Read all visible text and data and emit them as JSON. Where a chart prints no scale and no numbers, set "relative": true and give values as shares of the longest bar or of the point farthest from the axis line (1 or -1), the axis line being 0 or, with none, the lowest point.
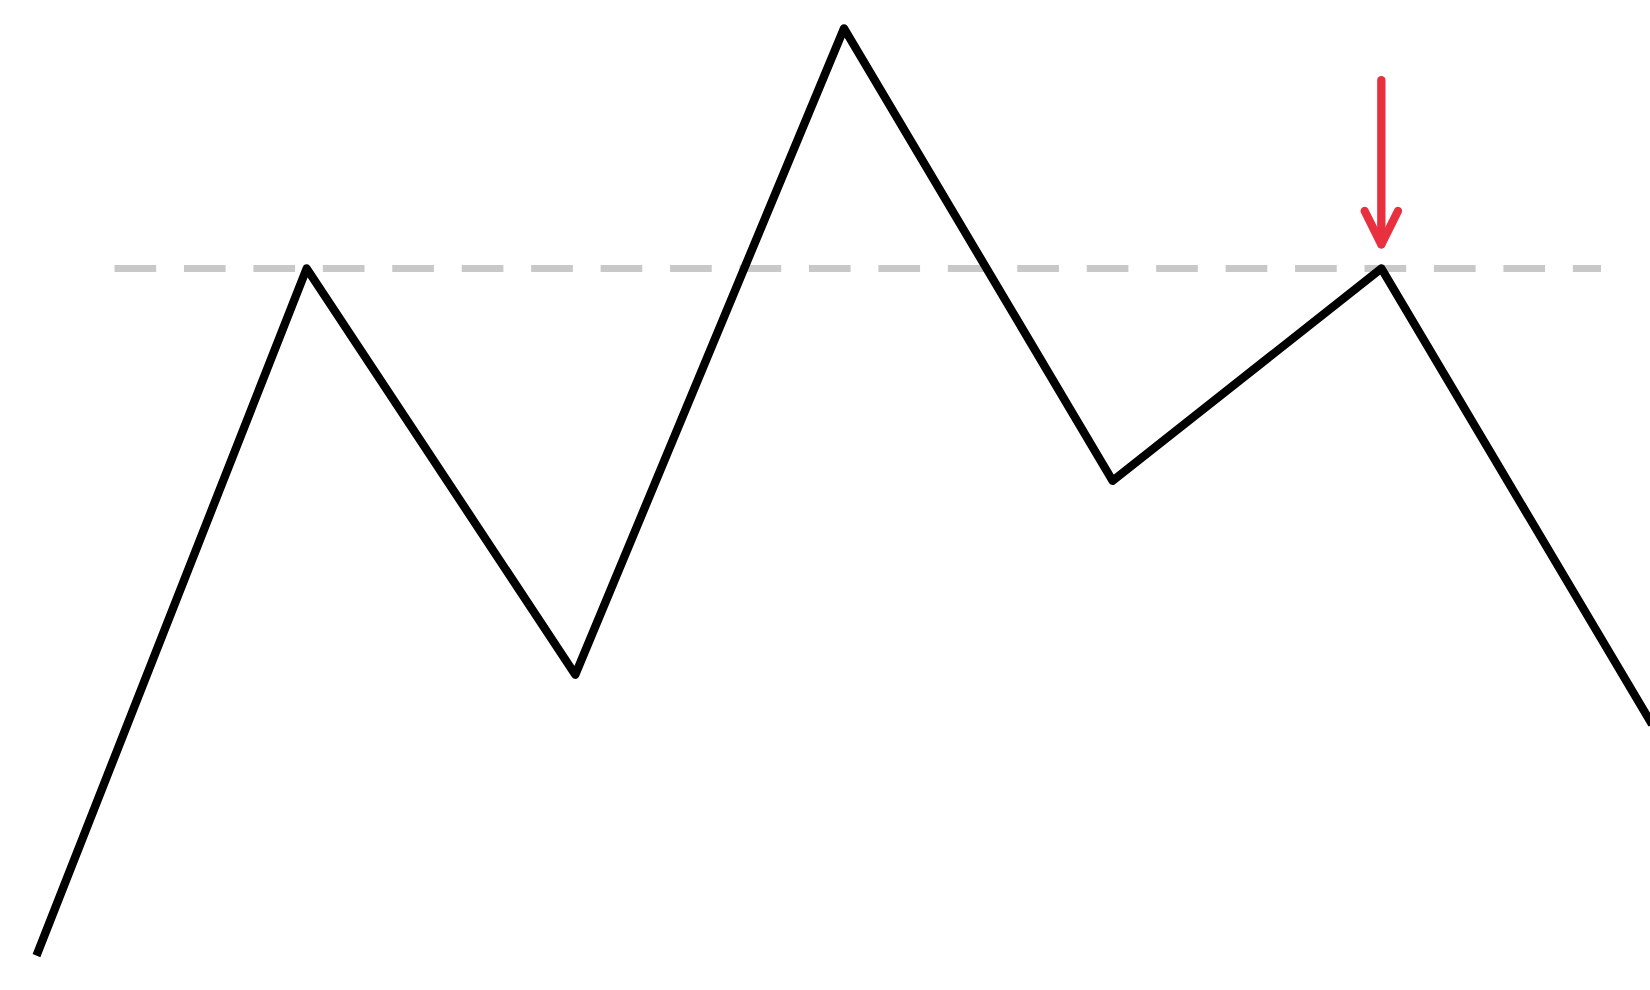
{
  "chart_data": {
    "type": "line",
    "relative": true,
    "categories": [
      null,
      null,
      null,
      null,
      null,
      null,
      null
    ],
    "series": [
      {
        "color": "#000000",
        "values": [
          0,
          0.74,
          0.3,
          1,
          0.51,
          0.74,
          0.25
        ]
      }
    ],
    "ref_lines": [
      {
        "axis": "y",
        "value": 0.74,
        "color": "#c8c8c8",
        "line_style": "dashed"
      }
    ],
    "marker": "none",
    "line_style": "solid",
    "legend": false
  }
}
